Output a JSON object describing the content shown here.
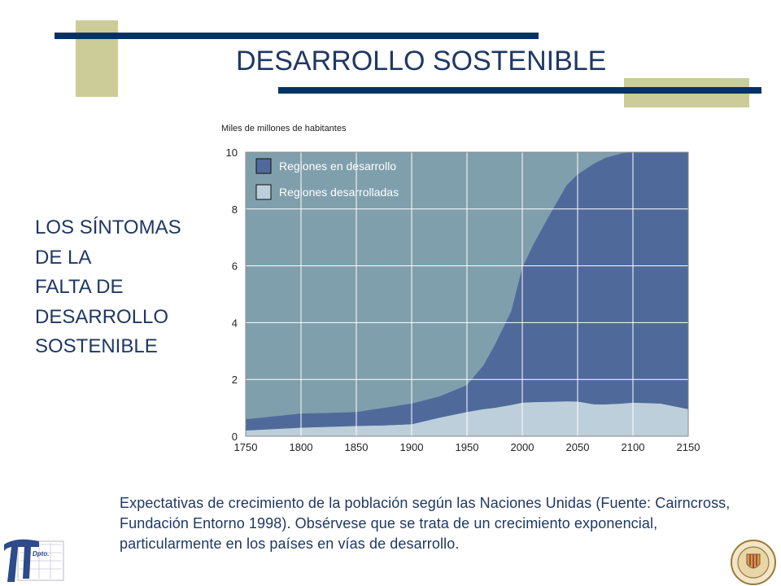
{
  "title": "DESARROLLO SOSTENIBLE",
  "side_text": [
    "LOS SÍNTOMAS",
    "DE LA",
    "FALTA DE",
    "DESARROLLO",
    "SOSTENIBLE"
  ],
  "caption": "Expectativas de crecimiento de la población según las Naciones Unidas (Fuente: Cairncross, Fundación Entorno 1998). Obsérvese que se trata de un crecimiento exponencial, particularmente en los países en vías de desarrollo.",
  "logos": {
    "left_text": "Departamento Proyectos Ingeniería",
    "right_text": "UNIVERSIDAD POLITECNICA VALENCIA"
  },
  "colors": {
    "title": "#1f3864",
    "deco_bar": "#003366",
    "deco_square": "#cccc99",
    "plot_bg": "#7f9fac",
    "developing": "#4f6a9a",
    "developed": "#bccfdb"
  },
  "chart_data": {
    "type": "area",
    "stacked": true,
    "unit_label": "Miles de millones de habitantes",
    "xlim": [
      1750,
      2150
    ],
    "ylim": [
      0,
      10
    ],
    "xticks": [
      1750,
      1800,
      1850,
      1900,
      1950,
      2000,
      2050,
      2100,
      2150
    ],
    "yticks": [
      0,
      2,
      4,
      6,
      8,
      10
    ],
    "grid": true,
    "legend_position": "top-left",
    "x": [
      1750,
      1775,
      1800,
      1825,
      1850,
      1875,
      1900,
      1925,
      1950,
      1965,
      1975,
      1990,
      2000,
      2010,
      2025,
      2040,
      2050,
      2065,
      2075,
      2090,
      2100,
      2125,
      2150
    ],
    "series": [
      {
        "name": "Regiones desarrolladas",
        "color": "#bccfdb",
        "values": [
          0.2,
          0.25,
          0.3,
          0.33,
          0.36,
          0.38,
          0.42,
          0.65,
          0.85,
          0.95,
          1.0,
          1.1,
          1.18,
          1.2,
          1.21,
          1.23,
          1.22,
          1.12,
          1.12,
          1.15,
          1.18,
          1.15,
          0.95
        ]
      },
      {
        "name": "Regiones en desarrollo",
        "color": "#4f6a9a",
        "values": [
          0.4,
          0.45,
          0.5,
          0.49,
          0.49,
          0.62,
          0.73,
          0.75,
          0.95,
          1.55,
          2.2,
          3.3,
          4.75,
          5.55,
          6.6,
          7.6,
          8.0,
          8.48,
          8.68,
          8.81,
          8.82,
          8.85,
          9.05
        ]
      }
    ]
  }
}
